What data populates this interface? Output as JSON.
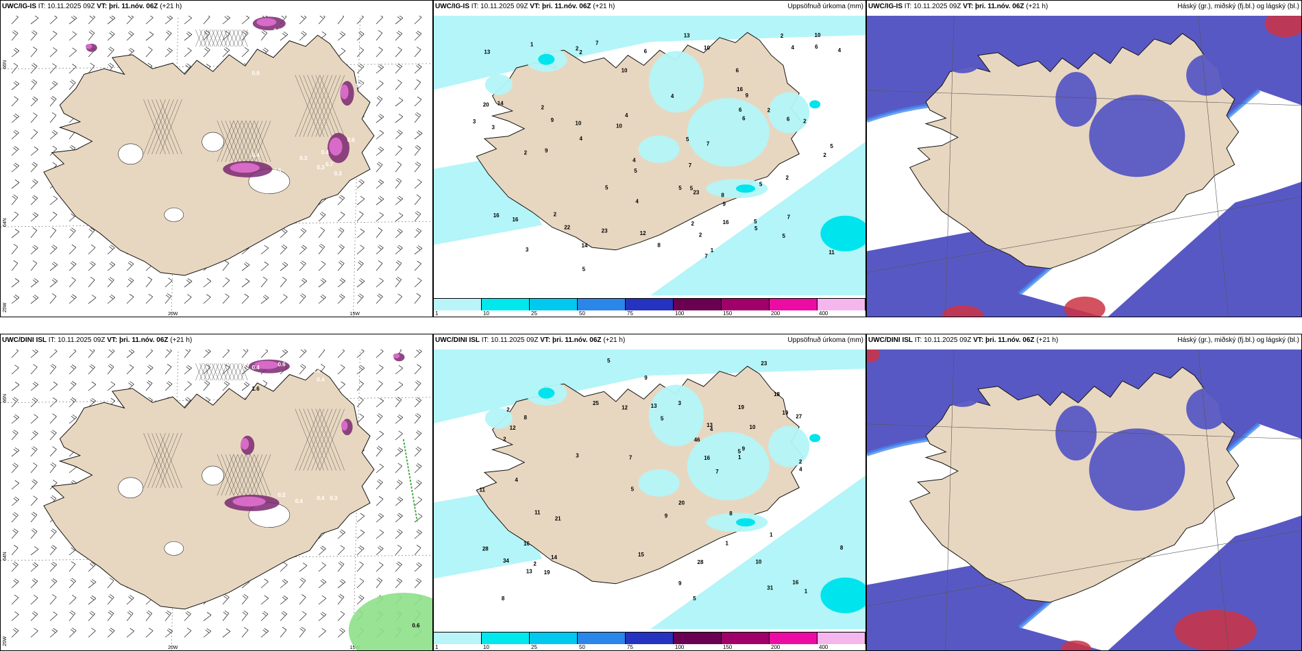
{
  "rows": [
    {
      "model": "UWC/IG-IS",
      "it_label": "IT:",
      "issue_time": "10.11.2025 09Z",
      "vt_label": "VT:",
      "valid_time": "þri. 11.nóv. 06Z",
      "lead": "(+21 h)",
      "wind_labels": [
        "0.5",
        "0.3",
        "0.3",
        "0.9",
        "0.5",
        "0.3",
        "0.4",
        "0.3",
        "0.4",
        "0.6",
        "0.5",
        "0.3",
        "0.7",
        "0.3"
      ],
      "precip_values": [
        "1",
        "2",
        "2",
        "2",
        "2",
        "2",
        "2",
        "4",
        "5",
        "22",
        "16",
        "20",
        "4",
        "5",
        "6",
        "2",
        "3",
        "4",
        "5",
        "6",
        "5",
        "23",
        "14",
        "5",
        "7",
        "9",
        "9",
        "9",
        "8",
        "10",
        "9",
        "10",
        "6",
        "23",
        "7",
        "12",
        "13",
        "14",
        "5",
        "8",
        "6",
        "5",
        "4",
        "7",
        "10",
        "2",
        "5",
        "4",
        "7",
        "6",
        "5",
        "4",
        "10",
        "16",
        "13",
        "11",
        "5",
        "4",
        "5",
        "16",
        "3",
        "7",
        "6",
        "2",
        "2",
        "3",
        "1",
        "2",
        "16",
        "10",
        "2"
      ],
      "precip_title": "Uppsöfnuð úrkoma (mm)",
      "cloud_title": "Háský (gr.), miðský (fj.bl.) og lágský (bl.)"
    },
    {
      "model": "UWC/DINI ISL",
      "it_label": "IT:",
      "issue_time": "10.11.2025 09Z",
      "vt_label": "VT:",
      "valid_time": "þri. 11.nóv. 06Z",
      "lead": "(+21 h)",
      "wind_labels": [
        "0.4",
        "0.6",
        "0.3",
        "1.6",
        "0.4",
        "0.2",
        "0.4",
        "0.4",
        "0.3",
        "0.6"
      ],
      "precip_values": [
        "1",
        "2",
        "2",
        "19",
        "46",
        "19",
        "9",
        "8",
        "4",
        "7",
        "5",
        "9",
        "10",
        "10",
        "20",
        "27",
        "23",
        "14",
        "8",
        "11",
        "16",
        "9",
        "18",
        "19",
        "16",
        "13",
        "9",
        "7",
        "5",
        "34",
        "28",
        "31",
        "28",
        "25",
        "12",
        "13",
        "13",
        "16",
        "21",
        "12",
        "8",
        "8",
        "5",
        "4",
        "5",
        "3",
        "1",
        "3",
        "4",
        "5",
        "11",
        "15",
        "2",
        "1",
        "2",
        "1"
      ],
      "precip_title": "Uppsöfnuð úrkoma (mm)",
      "cloud_title": "Háský (gr.), miðský (fj.bl.) og lágský (bl.)"
    }
  ],
  "lat_lon_labels": {
    "lat_66": "66N",
    "lat_64": "64N",
    "lon_25": "25W",
    "lon_20": "20W",
    "lon_15": "15W"
  },
  "precip_colorbar": {
    "ticks": [
      "1",
      "10",
      "25",
      "50",
      "75",
      "100",
      "150",
      "200",
      "400"
    ],
    "colors": [
      "#b8f4f8",
      "#00e8ec",
      "#00c8ee",
      "#2a86e8",
      "#2434c0",
      "#6a0052",
      "#a0006a",
      "#ec0ca4",
      "#f5b6ee"
    ]
  },
  "colors": {
    "land": "#e8d7c0",
    "sea": "#ffffff",
    "hatch": "#555555",
    "pink": "#d86ac8",
    "purple_dark": "#7a2870",
    "precip_light": "#b3f5f8",
    "precip_mid": "#00e4ee",
    "cloud_high": "#cc3344",
    "cloud_mid": "#5858c4",
    "cloud_low": "#4488ee",
    "green": "#8ee08a"
  }
}
